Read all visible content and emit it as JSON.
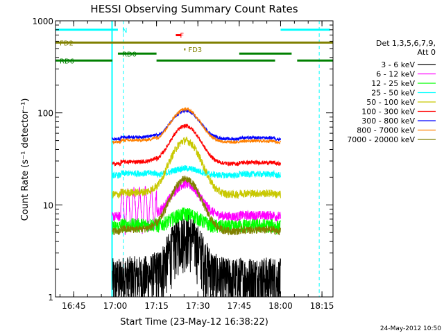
{
  "chart_data": {
    "type": "line",
    "title": "HESSI Observing Summary Count Rates",
    "xlabel": "Start Time (23-May-12 16:38:22)",
    "ylabel": "Count Rate (s⁻¹ detector⁻¹)",
    "yscale": "log",
    "ylim": [
      1,
      1000
    ],
    "xlim": [
      "16:38:22",
      "18:19:00"
    ],
    "x_ticks": [
      "16:45",
      "17:00",
      "17:15",
      "17:30",
      "17:45",
      "18:00",
      "18:15"
    ],
    "y_ticks": [
      "1",
      "10",
      "100",
      "1000"
    ],
    "legend_header": [
      "Det 1,3,5,6,7,9,",
      "Att 0"
    ],
    "legend_position": "right",
    "timestamp": "24-May-2012 10:50",
    "night_intervals": [
      [
        "16:38:22",
        "16:59:00"
      ],
      [
        "17:59:00",
        "18:19:00"
      ]
    ],
    "saa_dashed_lines": [
      "17:03:00",
      "18:14:00"
    ],
    "segments": [
      {
        "label": "N",
        "color": "#00ffff",
        "intervals": [
          [
            "16:38:22",
            "17:01:00"
          ],
          [
            "18:00:00",
            "18:18:00"
          ]
        ],
        "level": 800
      },
      {
        "label": "F",
        "color": "#ff0000",
        "intervals": [
          [
            "17:22:00",
            "17:24:00"
          ]
        ],
        "level": 700
      },
      {
        "label": "FD2",
        "color": "#808000",
        "intervals": [
          [
            "16:38:22",
            "18:19:00"
          ]
        ],
        "level": 580
      },
      {
        "label": "FD3",
        "color": "#808000",
        "intervals": [
          [
            "17:25:00",
            "17:25:30"
          ]
        ],
        "level": 490
      },
      {
        "label": "RD0",
        "color": "#008000",
        "intervals": [
          [
            "17:01:00",
            "17:15:00"
          ],
          [
            "17:45:00",
            "18:04:00"
          ]
        ],
        "level": 440
      },
      {
        "label": "RD6",
        "color": "#008000",
        "intervals": [
          [
            "16:38:22",
            "16:59:00"
          ],
          [
            "17:15:00",
            "17:58:00"
          ],
          [
            "18:06:00",
            "18:19:00"
          ]
        ],
        "level": 370
      }
    ],
    "series": [
      {
        "name": "3 - 6 keV",
        "color": "#000000",
        "base": 1.6,
        "peak": 5,
        "noise": 0.65
      },
      {
        "name": "6 - 12 keV",
        "color": "#ff00ff",
        "base": 7.5,
        "peak": 17,
        "noise": 0.12
      },
      {
        "name": "12 - 25 keV",
        "color": "#00ff00",
        "base": 5.8,
        "peak": 8,
        "noise": 0.18
      },
      {
        "name": "25 - 50 keV",
        "color": "#00ffff",
        "base": 21,
        "peak": 25,
        "noise": 0.08
      },
      {
        "name": "50 - 100 keV",
        "color": "#c8c800",
        "base": 13,
        "peak": 50,
        "noise": 0.1
      },
      {
        "name": "100 - 300 keV",
        "color": "#ff0000",
        "base": 28,
        "peak": 72,
        "noise": 0.05
      },
      {
        "name": "300 - 800 keV",
        "color": "#0000ff",
        "base": 52,
        "peak": 105,
        "noise": 0.04
      },
      {
        "name": "800 - 7000 keV",
        "color": "#ff8000",
        "base": 48,
        "peak": 110,
        "noise": 0.04
      },
      {
        "name": "7000 - 20000 keV",
        "color": "#808000",
        "base": 5.2,
        "peak": 19,
        "noise": 0.1
      }
    ],
    "grid": false
  }
}
